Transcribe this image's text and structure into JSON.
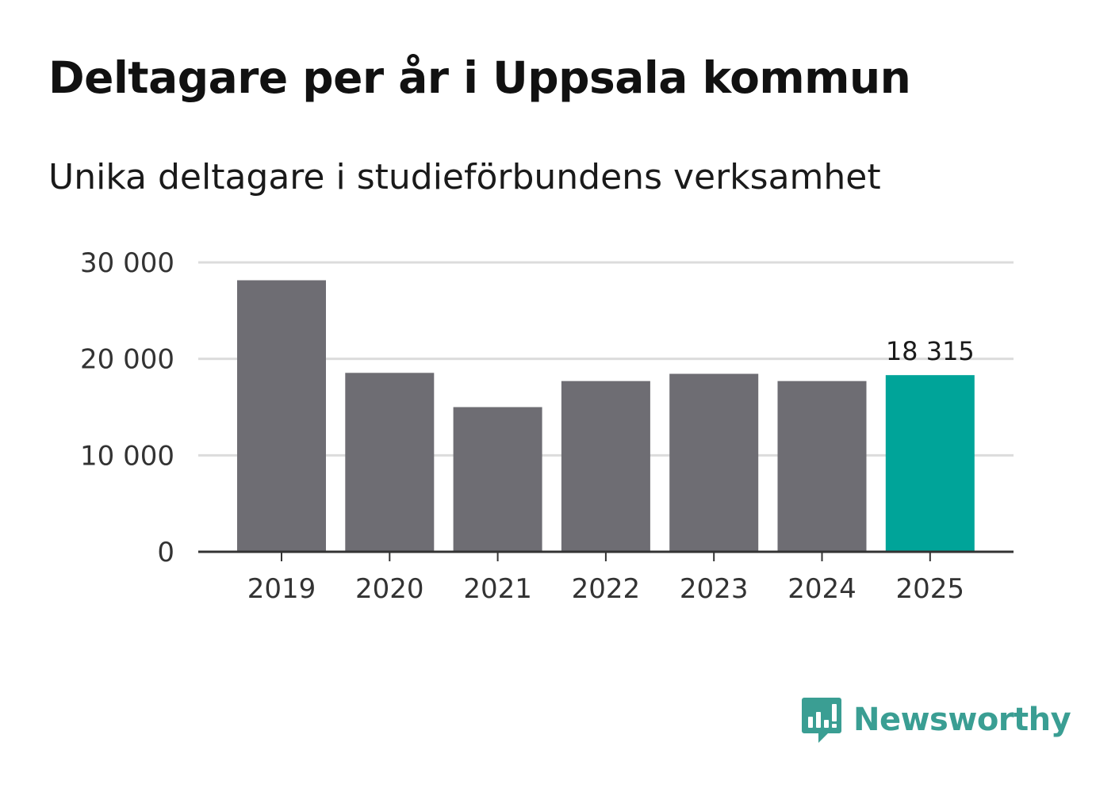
{
  "title": "Deltagare per år i Uppsala kommun",
  "subtitle": "Unika deltagare i studieförbundens verksamhet",
  "logo": {
    "text": "Newsworthy",
    "icon": "newsworthy-chart-bubble-icon",
    "color": "#3a9e93"
  },
  "chart_data": {
    "type": "bar",
    "categories": [
      "2019",
      "2020",
      "2021",
      "2022",
      "2023",
      "2024",
      "2025"
    ],
    "values": [
      28150,
      18550,
      15000,
      17700,
      18450,
      17700,
      18315
    ],
    "title": "Deltagare per år i Uppsala kommun",
    "subtitle": "Unika deltagare i studieförbundens verksamhet",
    "xlabel": "",
    "ylabel": "",
    "ylim": [
      0,
      30000
    ],
    "yticks": [
      0,
      10000,
      20000,
      30000
    ],
    "ytick_labels": [
      "0",
      "10 000",
      "20 000",
      "30 000"
    ],
    "grid": true,
    "highlight_index": 6,
    "highlight_label": "18 315",
    "colors": {
      "bar": "#6e6d73",
      "highlight": "#00a499",
      "grid": "#dcdcdc",
      "axis": "#333333"
    }
  }
}
